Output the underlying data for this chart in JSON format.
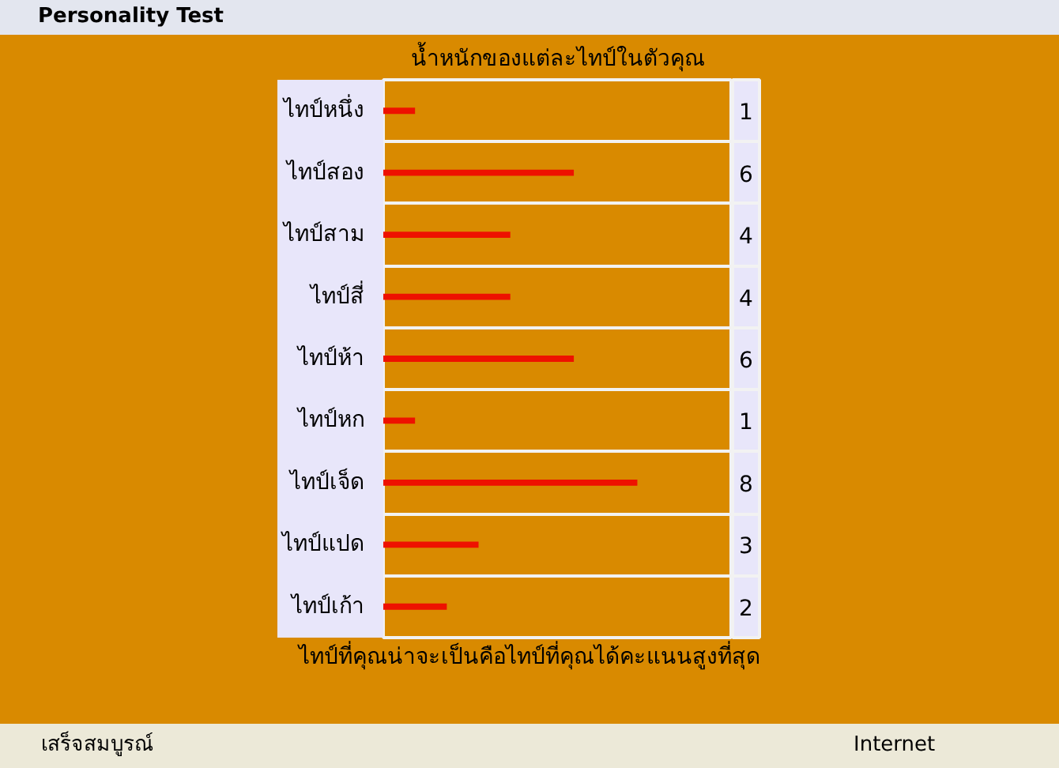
{
  "chart_data": {
    "type": "bar",
    "orientation": "horizontal",
    "title": "น้ำหนักของแต่ละไทป์ในตัวคุณ",
    "categories": [
      "ไทป์หนึ่ง",
      "ไทป์สอง",
      "ไทป์สาม",
      "ไทป์สี่",
      "ไทป์ห้า",
      "ไทป์หก",
      "ไทป์เจ็ด",
      "ไทป์แปด",
      "ไทป์เก้า"
    ],
    "values": [
      1,
      6,
      4,
      4,
      6,
      1,
      8,
      3,
      2
    ],
    "color": "#ee1100",
    "tick_labels": "y",
    "grid": "y",
    "data_labels": true,
    "annotations": [
      "ไทป์ที่คุณน่าจะเป็นคือไทป์ที่คุณได้คะแนนสูงที่สุด",
      "Personality Test",
      "เสร็จสมบูรณ์",
      "Internet"
    ]
  }
}
